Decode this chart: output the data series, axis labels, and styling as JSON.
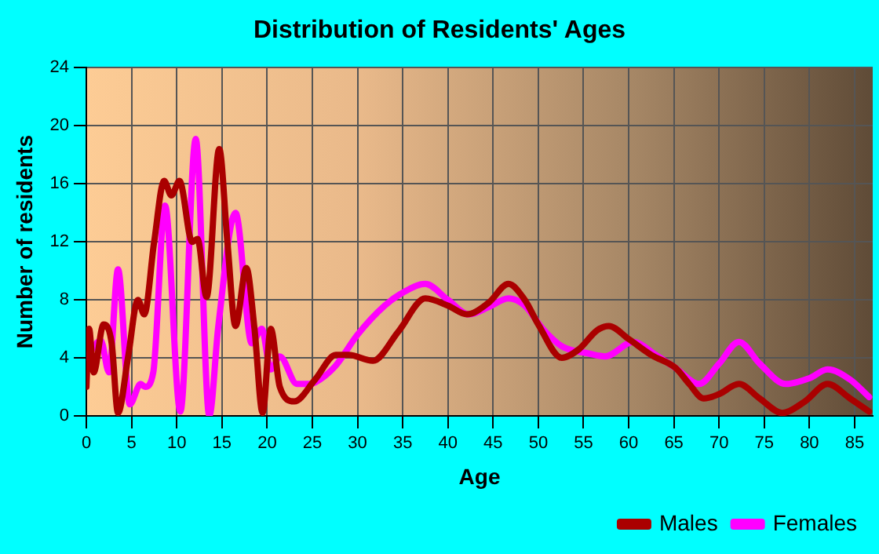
{
  "chart_data": {
    "type": "line",
    "title": "Distribution of Residents' Ages",
    "xlabel": "Age",
    "ylabel": "Number of residents",
    "xlim": [
      0,
      87
    ],
    "xticks": [
      0,
      5,
      10,
      15,
      20,
      25,
      30,
      35,
      40,
      45,
      50,
      55,
      60,
      65,
      70,
      75,
      80,
      85
    ],
    "ylim": [
      0,
      24
    ],
    "yticks": [
      0,
      4,
      8,
      12,
      16,
      20,
      24
    ],
    "grid": true,
    "legend": "bottom right",
    "marker": "none",
    "line_style": "solid",
    "series": [
      {
        "name": "Males",
        "color": "#aa0000",
        "x": [
          0,
          0.3,
          0.8,
          1.9,
          2.8,
          3.5,
          4.6,
          5.7,
          6.4,
          7.5,
          8.6,
          9.4,
          10.3,
          11.7,
          12.3,
          13.3,
          14.7,
          15.6,
          16.5,
          17.7,
          18.6,
          19.5,
          20.4,
          21.4,
          23,
          25.3,
          27.6,
          29,
          31.7,
          34.5,
          37.5,
          40,
          42.1,
          44.5,
          46.7,
          48.5,
          50,
          52.6,
          54.5,
          56.5,
          57.8,
          60,
          62.5,
          65.2,
          66.7,
          68.3,
          70,
          72.2,
          74.5,
          77,
          79.5,
          82,
          84.5,
          86.6
        ],
        "values": [
          2,
          6,
          3,
          6.3,
          5,
          0.2,
          4,
          8,
          7,
          12,
          16.2,
          15.2,
          16.2,
          12,
          12.2,
          8.2,
          18.4,
          12,
          6.2,
          10.2,
          6,
          0.2,
          6,
          2,
          1,
          2.5,
          4.2,
          4.2,
          3.8,
          5.8,
          8.1,
          7.6,
          7,
          7.8,
          9.1,
          8,
          6.3,
          4,
          4.6,
          5.9,
          6.2,
          5.3,
          4.2,
          3.3,
          2.2,
          1.2,
          1.5,
          2.2,
          1.2,
          0.2,
          1,
          2.2,
          1.2,
          0.3
        ]
      },
      {
        "name": "Females",
        "color": "#ff00ff",
        "x": [
          0,
          1.6,
          2.5,
          3.5,
          4.8,
          6,
          6.5,
          7.4,
          8.7,
          10.4,
          12.1,
          13.6,
          14.6,
          16.5,
          18.3,
          19.4,
          20.4,
          21.4,
          23.3,
          24.7,
          25.3,
          27.5,
          30,
          33,
          35,
          37.5,
          40,
          42.3,
          44.5,
          46.7,
          48.5,
          50.5,
          52.6,
          55.6,
          57.4,
          60.5,
          63,
          65.2,
          67.8,
          70,
          72.2,
          74.5,
          77.4,
          80,
          82,
          84.5,
          86.6
        ],
        "values": [
          4,
          5.2,
          3,
          10.1,
          0.8,
          2.2,
          2,
          3,
          14.5,
          0.3,
          19.1,
          0,
          6.2,
          14,
          5,
          6,
          3.2,
          4.1,
          2.2,
          2.2,
          2.3,
          3.4,
          5.6,
          7.6,
          8.5,
          9.1,
          8,
          7,
          7.5,
          8.1,
          7.6,
          6,
          4.8,
          4.3,
          4.1,
          5.1,
          4.2,
          3.3,
          2.2,
          3.6,
          5.1,
          3.6,
          2.2,
          2.6,
          3.2,
          2.5,
          1.3
        ]
      }
    ]
  }
}
